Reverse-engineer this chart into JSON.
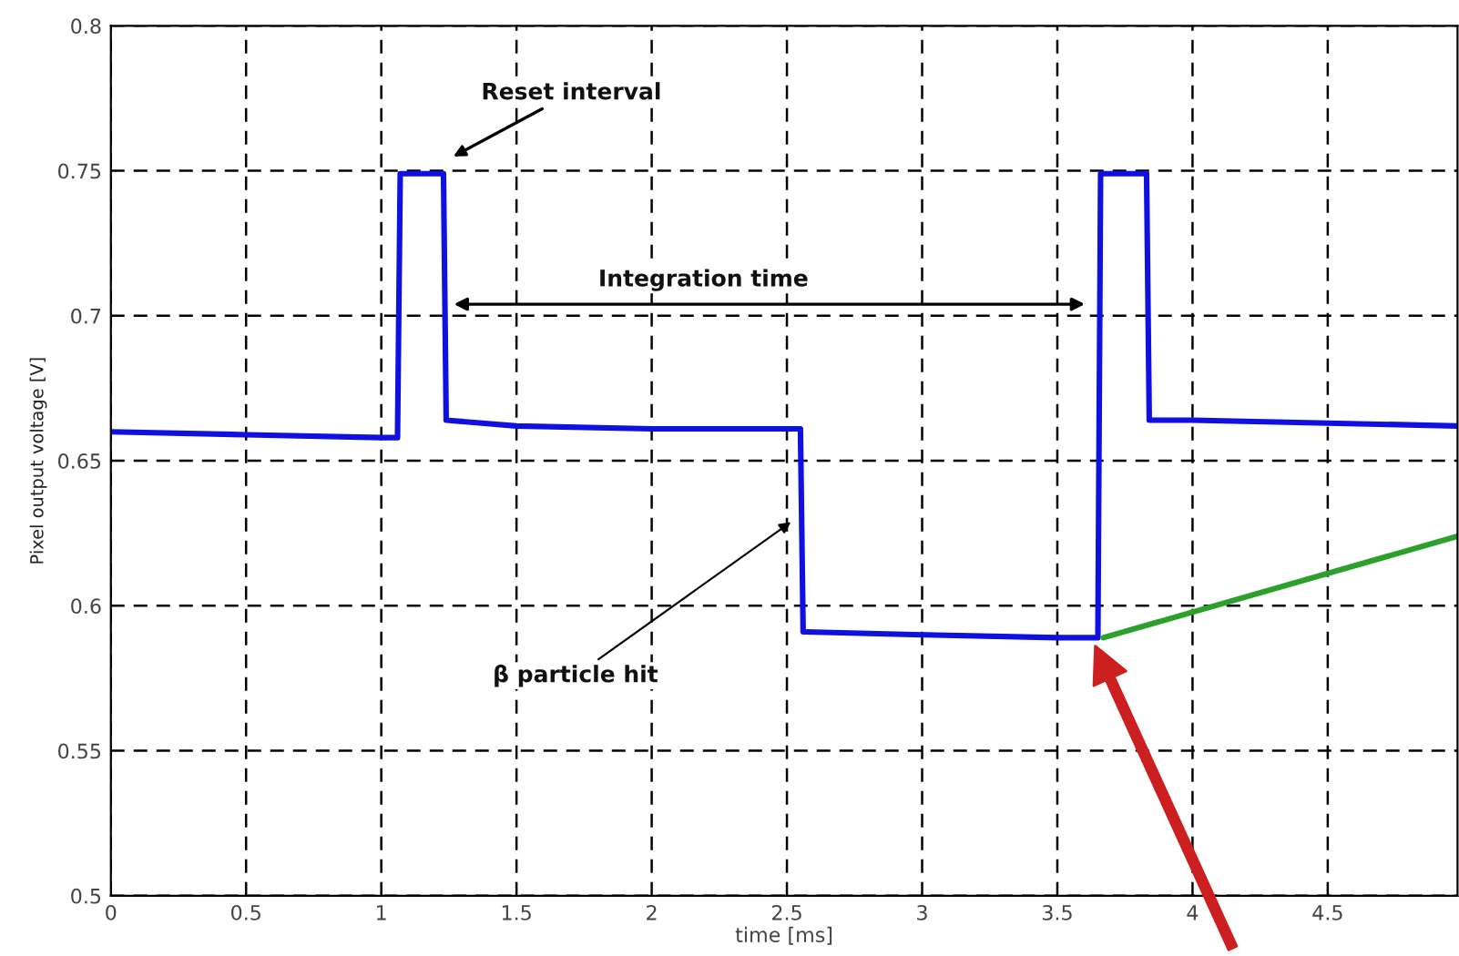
{
  "chart_data": {
    "type": "line",
    "xlabel": "time [ms]",
    "ylabel": "Pixel output voltage [V]",
    "xlim": [
      0,
      4.98
    ],
    "xticks": [
      0,
      0.5,
      1,
      1.5,
      2,
      2.5,
      3,
      3.5,
      4,
      4.5
    ],
    "ylim": [
      0.5,
      0.8
    ],
    "yticks": [
      0.5,
      0.55,
      0.6,
      0.65,
      0.7,
      0.75,
      0.8
    ],
    "grid": true,
    "line_style": "solid",
    "marker": "none",
    "series": [
      {
        "color": "#1010e0",
        "x": [
          0,
          0.5,
          1.0,
          1.06,
          1.07,
          1.1,
          1.2,
          1.23,
          1.24,
          1.5,
          2.0,
          2.55,
          2.56,
          2.57,
          3.0,
          3.5,
          3.65,
          3.66,
          3.67,
          3.75,
          3.83,
          3.84,
          4.0,
          4.5,
          4.98
        ],
        "values": [
          0.66,
          0.659,
          0.658,
          0.658,
          0.749,
          0.749,
          0.749,
          0.749,
          0.664,
          0.662,
          0.661,
          0.661,
          0.591,
          0.591,
          0.59,
          0.589,
          0.589,
          0.749,
          0.749,
          0.749,
          0.749,
          0.664,
          0.664,
          0.663,
          0.662
        ]
      },
      {
        "color": "#2ca02c",
        "x": [
          3.67,
          4.98
        ],
        "values": [
          0.589,
          0.624
        ]
      }
    ],
    "annotations": [
      "Reset interval",
      "Integration time",
      "β particle hit"
    ]
  }
}
